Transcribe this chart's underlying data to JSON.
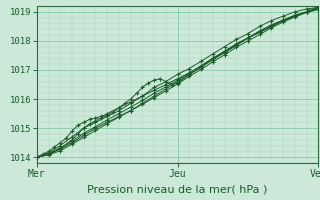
{
  "bg_color": "#cce8d8",
  "grid_major_color": "#88c8a8",
  "grid_minor_color": "#aad8bc",
  "line_color": "#1a5c2a",
  "spine_color": "#2a6c3a",
  "xlim": [
    0,
    48
  ],
  "ylim": [
    1013.8,
    1019.2
  ],
  "yticks": [
    1014,
    1015,
    1016,
    1017,
    1018,
    1019
  ],
  "xtick_positions": [
    0,
    24,
    48
  ],
  "xtick_labels": [
    "Mer",
    "Jeu",
    "Ven"
  ],
  "xlabel": "Pression niveau de la mer( hPa )",
  "series": [
    [
      0,
      1014.0,
      1,
      1014.1,
      2,
      1014.2,
      3,
      1014.35,
      4,
      1014.5,
      5,
      1014.65,
      6,
      1014.9,
      7,
      1015.1,
      8,
      1015.2,
      9,
      1015.3,
      10,
      1015.35,
      11,
      1015.4,
      12,
      1015.5,
      14,
      1015.7,
      16,
      1015.9,
      18,
      1016.1,
      20,
      1016.3,
      22,
      1016.5,
      24,
      1016.7,
      26,
      1016.9,
      28,
      1017.1,
      30,
      1017.4,
      32,
      1017.6,
      34,
      1017.85,
      36,
      1018.1,
      38,
      1018.3,
      40,
      1018.5,
      42,
      1018.7,
      44,
      1018.85,
      46,
      1019.0,
      48,
      1019.1
    ],
    [
      0,
      1014.0,
      2,
      1014.15,
      4,
      1014.4,
      6,
      1014.7,
      8,
      1015.0,
      10,
      1015.2,
      12,
      1015.4,
      14,
      1015.6,
      16,
      1015.85,
      18,
      1016.1,
      20,
      1016.4,
      22,
      1016.6,
      24,
      1016.85,
      26,
      1017.05,
      28,
      1017.3,
      30,
      1017.55,
      32,
      1017.8,
      34,
      1018.05,
      36,
      1018.25,
      38,
      1018.5,
      40,
      1018.7,
      42,
      1018.85,
      44,
      1019.0,
      46,
      1019.1,
      48,
      1019.15
    ],
    [
      0,
      1014.0,
      2,
      1014.1,
      4,
      1014.3,
      6,
      1014.6,
      7,
      1014.8,
      8,
      1015.0,
      9,
      1015.15,
      10,
      1015.25,
      11,
      1015.35,
      12,
      1015.45,
      13,
      1015.55,
      14,
      1015.7,
      15,
      1015.85,
      16,
      1016.0,
      17,
      1016.2,
      18,
      1016.4,
      19,
      1016.55,
      20,
      1016.65,
      21,
      1016.7,
      22,
      1016.6,
      23,
      1016.5,
      24,
      1016.55,
      26,
      1016.85,
      28,
      1017.1,
      30,
      1017.4,
      32,
      1017.65,
      34,
      1017.9,
      36,
      1018.1,
      38,
      1018.35,
      40,
      1018.55,
      42,
      1018.72,
      44,
      1018.88,
      46,
      1019.0,
      48,
      1019.1
    ],
    [
      0,
      1014.0,
      2,
      1014.1,
      4,
      1014.28,
      6,
      1014.5,
      8,
      1014.75,
      10,
      1015.0,
      12,
      1015.2,
      14,
      1015.4,
      16,
      1015.6,
      18,
      1015.85,
      20,
      1016.1,
      22,
      1016.35,
      24,
      1016.6,
      26,
      1016.85,
      28,
      1017.1,
      30,
      1017.35,
      32,
      1017.6,
      34,
      1017.85,
      36,
      1018.1,
      38,
      1018.3,
      40,
      1018.5,
      42,
      1018.7,
      44,
      1018.85,
      46,
      1019.0,
      48,
      1019.15
    ],
    [
      0,
      1014.0,
      2,
      1014.12,
      4,
      1014.32,
      6,
      1014.55,
      8,
      1014.82,
      10,
      1015.05,
      12,
      1015.28,
      14,
      1015.5,
      16,
      1015.72,
      18,
      1015.95,
      20,
      1016.2,
      22,
      1016.42,
      24,
      1016.65,
      26,
      1016.9,
      28,
      1017.15,
      30,
      1017.4,
      32,
      1017.62,
      34,
      1017.88,
      36,
      1018.1,
      38,
      1018.32,
      40,
      1018.52,
      42,
      1018.72,
      44,
      1018.88,
      46,
      1019.0,
      48,
      1019.18
    ],
    [
      0,
      1014.0,
      2,
      1014.08,
      4,
      1014.22,
      6,
      1014.45,
      8,
      1014.68,
      10,
      1014.92,
      12,
      1015.15,
      14,
      1015.38,
      16,
      1015.6,
      18,
      1015.82,
      20,
      1016.05,
      22,
      1016.28,
      24,
      1016.52,
      26,
      1016.78,
      28,
      1017.02,
      30,
      1017.28,
      32,
      1017.52,
      34,
      1017.78,
      36,
      1018.0,
      38,
      1018.22,
      40,
      1018.45,
      42,
      1018.65,
      44,
      1018.82,
      46,
      1018.98,
      48,
      1019.08
    ]
  ]
}
